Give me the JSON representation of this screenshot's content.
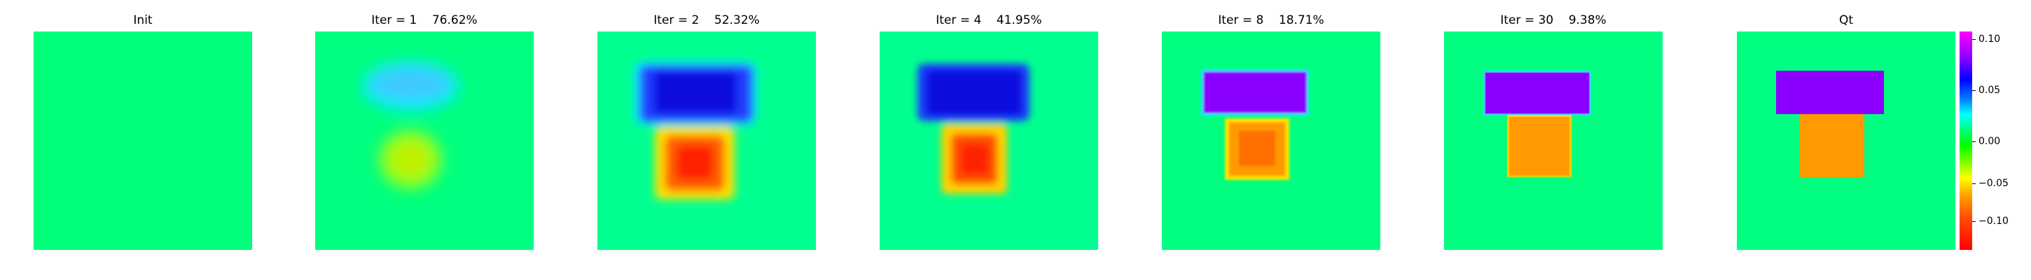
{
  "panels": [
    {
      "title": "Init",
      "variant": "init"
    },
    {
      "title": "Iter = 1    76.62%",
      "variant": "iter1"
    },
    {
      "title": "Iter = 2    52.32%",
      "variant": "iter2"
    },
    {
      "title": "Iter = 4    41.95%",
      "variant": "iter4"
    },
    {
      "title": "Iter = 8    18.71%",
      "variant": "iter8"
    },
    {
      "title": "Iter = 30    9.38%",
      "variant": "iter30"
    },
    {
      "title": "Qt",
      "variant": "qt"
    }
  ],
  "colorbar": {
    "ticks": [
      "0.10",
      "0.05",
      "0.00",
      "−0.05",
      "−0.10"
    ],
    "tick_values": [
      0.1,
      0.05,
      0.0,
      -0.05,
      -0.1
    ],
    "range": [
      -0.15,
      0.15
    ]
  },
  "colors": {
    "background": "#00ff7a",
    "upper_target": "#8c00ff",
    "lower_target": "#ff9900"
  }
}
